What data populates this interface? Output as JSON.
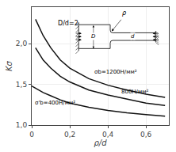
{
  "chart_data": {
    "type": "line",
    "xlabel": "ρ/d",
    "ylabel": "Kσ",
    "xlim": [
      0,
      0.72
    ],
    "ylim": [
      1.0,
      2.45
    ],
    "xticks": [
      0,
      {
        "value": 0.2,
        "label": "0,2"
      },
      {
        "value": 0.4,
        "label": "0,4"
      },
      {
        "value": 0.6,
        "label": "0,6"
      }
    ],
    "yticks": [
      {
        "value": 1.0,
        "label": "1,0"
      },
      {
        "value": 1.5,
        "label": "1,5"
      },
      {
        "value": 2.0,
        "label": "2,0"
      }
    ],
    "grid": true,
    "series": [
      {
        "color": "#111111",
        "x": [
          0.02,
          0.06,
          0.1,
          0.15,
          0.2,
          0.3,
          0.4,
          0.5,
          0.6,
          0.7
        ],
        "values": [
          2.3,
          2.1,
          1.95,
          1.8,
          1.7,
          1.57,
          1.49,
          1.43,
          1.38,
          1.34
        ]
      },
      {
        "color": "#111111",
        "x": [
          0.02,
          0.06,
          0.1,
          0.15,
          0.2,
          0.3,
          0.4,
          0.5,
          0.6,
          0.7
        ],
        "values": [
          1.95,
          1.8,
          1.7,
          1.6,
          1.53,
          1.43,
          1.37,
          1.32,
          1.27,
          1.24
        ]
      },
      {
        "color": "#111111",
        "x": [
          0.0,
          0.06,
          0.1,
          0.15,
          0.2,
          0.3,
          0.4,
          0.5,
          0.6,
          0.7
        ],
        "values": [
          1.48,
          1.4,
          1.36,
          1.31,
          1.27,
          1.22,
          1.18,
          1.15,
          1.13,
          1.11
        ]
      }
    ],
    "annotations": [
      {
        "text": "σb=1200Н/мм²",
        "x": 0.32,
        "y": 1.595
      },
      {
        "text": "800Н/мм²",
        "x": 0.46,
        "y": 1.355
      },
      {
        "text": "σ'b=400Н/мм²",
        "x": 0.01,
        "y": 1.215
      },
      {
        "text": "D/d=2",
        "x": 0.13,
        "y": 2.25
      }
    ],
    "inset_texts": [
      "D",
      "d",
      "ρ"
    ]
  }
}
